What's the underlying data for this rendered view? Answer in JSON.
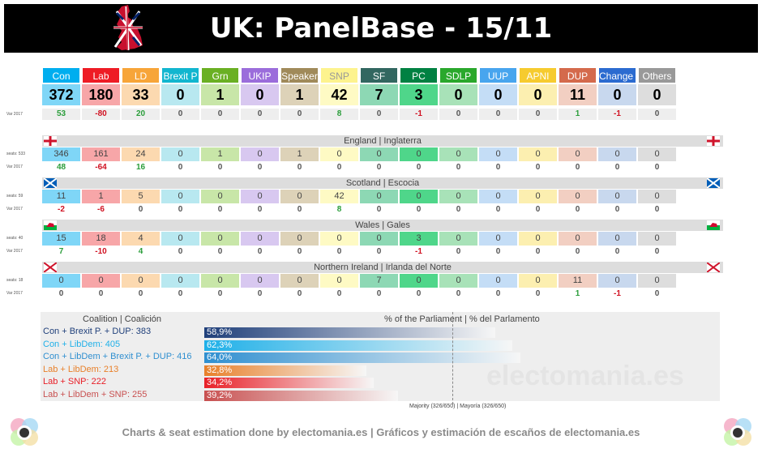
{
  "header": {
    "title": "UK: PanelBase - 15/11"
  },
  "parties": [
    {
      "name": "Con",
      "color": "#00aeef",
      "light": "#7fd6f7"
    },
    {
      "name": "Lab",
      "color": "#ee1c25",
      "light": "#f7a6a8"
    },
    {
      "name": "LD",
      "color": "#f7a539",
      "light": "#fcd9b0"
    },
    {
      "name": "Brexit P",
      "color": "#12b6cf",
      "light": "#b8e8f0"
    },
    {
      "name": "Grn",
      "color": "#6ab023",
      "light": "#c8e6a8"
    },
    {
      "name": "UKIP",
      "color": "#9b6ddb",
      "light": "#d8c8f0"
    },
    {
      "name": "Speaker",
      "color": "#a08a5a",
      "light": "#ddd2b8"
    },
    {
      "name": "SNP",
      "color": "#fdf38e",
      "light": "#fefac4"
    },
    {
      "name": "SF",
      "color": "#326760",
      "light": "#8dd8b4"
    },
    {
      "name": "PC",
      "color": "#008142",
      "light": "#4fd68a"
    },
    {
      "name": "SDLP",
      "color": "#2aa82c",
      "light": "#a8e2b8"
    },
    {
      "name": "UUP",
      "color": "#48a5ee",
      "light": "#c4ddf6"
    },
    {
      "name": "APNI",
      "color": "#f6cb2f",
      "light": "#fcefb0"
    },
    {
      "name": "DUP",
      "color": "#d46a4c",
      "light": "#f2cfc2"
    },
    {
      "name": "Change UK",
      "color": "#2b6bd0",
      "light": "#c8d8ee"
    },
    {
      "name": "Others",
      "color": "#999999",
      "light": "#dddddd"
    }
  ],
  "totals": [
    "372",
    "180",
    "33",
    "0",
    "1",
    "0",
    "1",
    "42",
    "7",
    "3",
    "0",
    "0",
    "0",
    "11",
    "0",
    "0"
  ],
  "totals_var_label": "Var 2017",
  "totals_var": [
    "53",
    "-80",
    "20",
    "0",
    "0",
    "0",
    "0",
    "8",
    "0",
    "-1",
    "0",
    "0",
    "0",
    "1",
    "-1",
    "0"
  ],
  "regions": [
    {
      "title": "England | Inglaterra",
      "seats_label": "seats: 533",
      "var_label": "Var 2017",
      "seats": [
        "346",
        "161",
        "24",
        "0",
        "1",
        "0",
        "1",
        "0",
        "0",
        "0",
        "0",
        "0",
        "0",
        "0",
        "0",
        "0"
      ],
      "var": [
        "48",
        "-64",
        "16",
        "0",
        "0",
        "0",
        "0",
        "0",
        "0",
        "0",
        "0",
        "0",
        "0",
        "0",
        "0",
        "0"
      ]
    },
    {
      "title": "Scotland | Escocia",
      "seats_label": "seats: 59",
      "var_label": "Var 2017",
      "seats": [
        "11",
        "1",
        "5",
        "0",
        "0",
        "0",
        "0",
        "42",
        "0",
        "0",
        "0",
        "0",
        "0",
        "0",
        "0",
        "0"
      ],
      "var": [
        "-2",
        "-6",
        "0",
        "0",
        "0",
        "0",
        "0",
        "8",
        "0",
        "0",
        "0",
        "0",
        "0",
        "0",
        "0",
        "0"
      ]
    },
    {
      "title": "Wales | Gales",
      "seats_label": "seats: 40",
      "var_label": "Var 2017",
      "seats": [
        "15",
        "18",
        "4",
        "0",
        "0",
        "0",
        "0",
        "0",
        "0",
        "3",
        "0",
        "0",
        "0",
        "0",
        "0",
        "0"
      ],
      "var": [
        "7",
        "-10",
        "4",
        "0",
        "0",
        "0",
        "0",
        "0",
        "0",
        "-1",
        "0",
        "0",
        "0",
        "0",
        "0",
        "0"
      ]
    },
    {
      "title": "Northern Ireland | Irlanda del Norte",
      "seats_label": "seats: 18",
      "var_label": "Var 2017",
      "seats": [
        "0",
        "0",
        "0",
        "0",
        "0",
        "0",
        "0",
        "0",
        "7",
        "0",
        "0",
        "0",
        "0",
        "11",
        "0",
        "0"
      ],
      "var": [
        "0",
        "0",
        "0",
        "0",
        "0",
        "0",
        "0",
        "0",
        "0",
        "0",
        "0",
        "0",
        "0",
        "1",
        "-1",
        "0"
      ]
    }
  ],
  "chart_data": {
    "type": "bar",
    "title_left": "Coalition | Coalición",
    "title_right": "% of the Parliament | % del Parlamento",
    "categories": [
      "Con + Brexit P. + DUP: 383",
      "Con + LibDem: 405",
      "Con + LibDem + Brexit P. + DUP: 416",
      "Lab + LibDem: 213",
      "Lab + SNP: 222",
      "Lab + LibDem + SNP: 255"
    ],
    "values": [
      58.9,
      62.3,
      64.0,
      32.8,
      34.2,
      39.2
    ],
    "value_labels": [
      "58,9%",
      "62,3%",
      "64,0%",
      "32,8%",
      "34,2%",
      "39,2%"
    ],
    "colors": [
      "#1f3f7a",
      "#1fb0e8",
      "#2f8fd0",
      "#e8802a",
      "#e82028",
      "#c85050"
    ],
    "label_colors": [
      "#1f3f7a",
      "#1fb0e8",
      "#2f8fd0",
      "#e8802a",
      "#e82028",
      "#c85050"
    ],
    "majority_label": "Majority (326/650) | Mayoría (326/650)",
    "majority_value": 50.2,
    "xlim": [
      0,
      100
    ]
  },
  "watermark": "electomania.es",
  "footer": "Charts & seat estimation done by electomania.es | Gráficos y estimación de escaños de electomania.es"
}
